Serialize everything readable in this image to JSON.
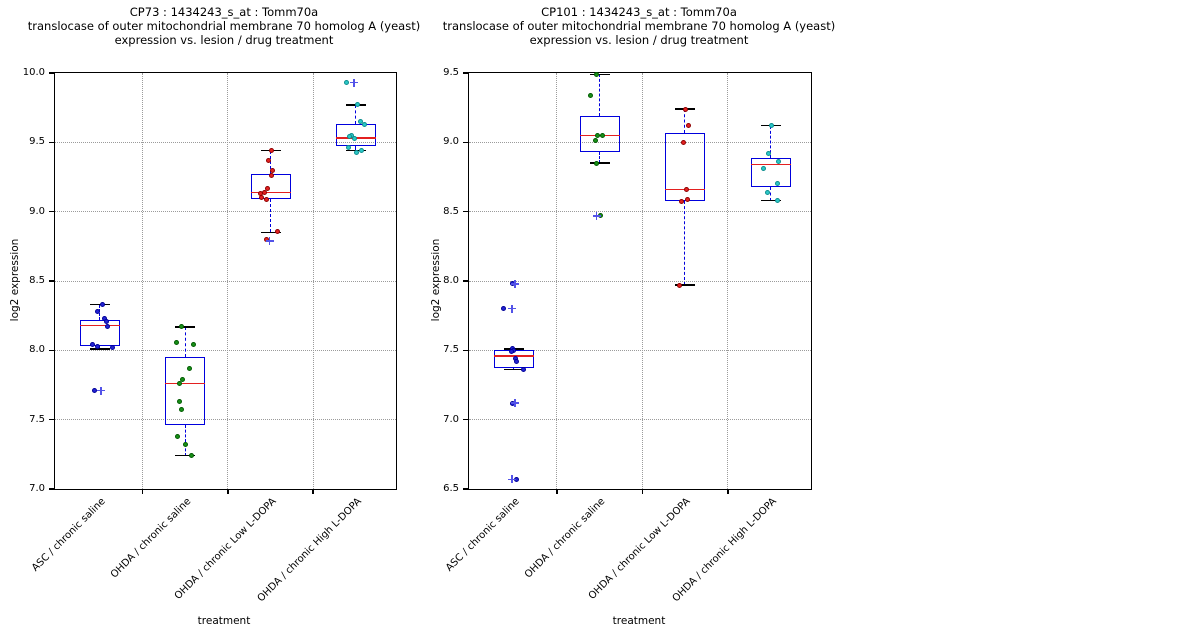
{
  "figure": {
    "background": "#ffffff",
    "colors": {
      "box": "#0000dd",
      "median": "#e32020",
      "whisker_cap": "#000000",
      "flier": "#5353e8",
      "grid": "#9b9b9b",
      "axis": "#000000"
    }
  },
  "chart_data": [
    {
      "type": "boxplot-with-points",
      "title_lines": [
        "CP73 : 1434243_s_at : Tomm70a",
        "translocase of outer mitochondrial membrane 70 homolog A (yeast)",
        "expression vs. lesion / drug treatment"
      ],
      "xlabel": "treatment",
      "ylabel": "log2 expression",
      "ylim": [
        7.0,
        10.0
      ],
      "yticks": [
        7.0,
        7.5,
        8.0,
        8.5,
        9.0,
        9.5,
        10.0
      ],
      "grid": "dotted horizontal at yticks, dotted vertical between categories",
      "categories": [
        "ASC / chronic saline",
        "OHDA / chronic saline",
        "OHDA / chronic Low L-DOPA",
        "OHDA / chronic High L-DOPA"
      ],
      "groups": [
        {
          "category": "ASC / chronic saline",
          "point_color": "#2323d3",
          "point_edge": "#000099",
          "box": {
            "whisker_low": 8.01,
            "q1": 8.03,
            "median": 8.18,
            "q3": 8.22,
            "whisker_high": 8.33
          },
          "points": [
            [
              8.33,
              2
            ],
            [
              8.28,
              -3
            ],
            [
              8.23,
              4
            ],
            [
              8.21,
              6
            ],
            [
              8.17,
              7
            ],
            [
              8.04,
              -8
            ],
            [
              8.03,
              -3
            ],
            [
              8.02,
              12
            ],
            [
              7.71,
              -6
            ]
          ],
          "fliers": [
            [
              7.71,
              1
            ]
          ]
        },
        {
          "category": "OHDA / chronic saline",
          "point_color": "#189018",
          "point_edge": "#005a00",
          "box": {
            "whisker_low": 7.24,
            "q1": 7.46,
            "median": 7.76,
            "q3": 7.95,
            "whisker_high": 8.17
          },
          "points": [
            [
              8.17,
              -4
            ],
            [
              8.06,
              -9
            ],
            [
              8.04,
              8
            ],
            [
              7.87,
              4
            ],
            [
              7.79,
              -3
            ],
            [
              7.76,
              -6
            ],
            [
              7.63,
              -6
            ],
            [
              7.57,
              -4
            ],
            [
              7.38,
              -8
            ],
            [
              7.32,
              0
            ],
            [
              7.24,
              6
            ]
          ],
          "fliers": []
        },
        {
          "category": "OHDA / chronic Low L-DOPA",
          "point_color": "#e32222",
          "point_edge": "#8f0000",
          "box": {
            "whisker_low": 8.85,
            "q1": 9.09,
            "median": 9.14,
            "q3": 9.27,
            "whisker_high": 9.44
          },
          "points": [
            [
              9.44,
              1
            ],
            [
              9.37,
              -2
            ],
            [
              9.3,
              2
            ],
            [
              9.26,
              1
            ],
            [
              9.17,
              -3
            ],
            [
              9.14,
              -6
            ],
            [
              9.13,
              -10
            ],
            [
              9.1,
              -9
            ],
            [
              9.09,
              -4
            ],
            [
              8.86,
              7
            ],
            [
              8.8,
              -4
            ]
          ],
          "fliers": [
            [
              8.79,
              -1
            ]
          ]
        },
        {
          "category": "OHDA / chronic High L-DOPA",
          "point_color": "#2cc7c7",
          "point_edge": "#0c8f8f",
          "box": {
            "whisker_low": 9.44,
            "q1": 9.47,
            "median": 9.53,
            "q3": 9.63,
            "whisker_high": 9.77
          },
          "points": [
            [
              9.93,
              -10
            ],
            [
              9.77,
              1
            ],
            [
              9.65,
              4
            ],
            [
              9.63,
              8
            ],
            [
              9.55,
              -5
            ],
            [
              9.54,
              -7
            ],
            [
              9.53,
              -2
            ],
            [
              9.46,
              -8
            ],
            [
              9.44,
              5
            ],
            [
              9.43,
              0
            ]
          ],
          "fliers": [
            [
              9.93,
              -2
            ]
          ]
        }
      ]
    },
    {
      "type": "boxplot-with-points",
      "title_lines": [
        "CP101 : 1434243_s_at : Tomm70a",
        "translocase of outer mitochondrial membrane 70 homolog A (yeast)",
        "expression vs. lesion / drug treatment"
      ],
      "xlabel": "treatment",
      "ylabel": "log2 expression",
      "ylim": [
        6.5,
        9.5
      ],
      "yticks": [
        6.5,
        7.0,
        7.5,
        8.0,
        8.5,
        9.0,
        9.5
      ],
      "grid": "dotted horizontal at yticks, dotted vertical between categories",
      "categories": [
        "ASC / chronic saline",
        "OHDA / chronic saline",
        "OHDA / chronic Low L-DOPA",
        "OHDA / chronic High L-DOPA"
      ],
      "groups": [
        {
          "category": "ASC / chronic saline",
          "point_color": "#2323d3",
          "point_edge": "#000099",
          "box": {
            "whisker_low": 7.36,
            "q1": 7.37,
            "median": 7.46,
            "q3": 7.5,
            "whisker_high": 7.51
          },
          "points": [
            [
              7.98,
              -2
            ],
            [
              7.8,
              -11
            ],
            [
              7.51,
              -2
            ],
            [
              7.5,
              -1
            ],
            [
              7.49,
              -3
            ],
            [
              7.44,
              1
            ],
            [
              7.42,
              2
            ],
            [
              7.36,
              9
            ],
            [
              7.12,
              -2
            ],
            [
              6.57,
              2
            ]
          ],
          "fliers": [
            [
              7.98,
              1
            ],
            [
              7.8,
              -2
            ],
            [
              7.12,
              1
            ],
            [
              6.57,
              -2
            ]
          ]
        },
        {
          "category": "OHDA / chronic saline",
          "point_color": "#189018",
          "point_edge": "#005a00",
          "box": {
            "whisker_low": 8.85,
            "q1": 8.93,
            "median": 9.05,
            "q3": 9.19,
            "whisker_high": 9.49
          },
          "points": [
            [
              9.49,
              -3
            ],
            [
              9.34,
              -9
            ],
            [
              9.05,
              -2
            ],
            [
              9.05,
              3
            ],
            [
              9.01,
              -4
            ],
            [
              8.85,
              -3
            ],
            [
              8.47,
              1
            ]
          ],
          "fliers": [
            [
              8.47,
              -3
            ]
          ]
        },
        {
          "category": "OHDA / chronic Low L-DOPA",
          "point_color": "#e32222",
          "point_edge": "#8f0000",
          "box": {
            "whisker_low": 7.97,
            "q1": 8.58,
            "median": 8.66,
            "q3": 9.07,
            "whisker_high": 9.24
          },
          "points": [
            [
              9.24,
              0
            ],
            [
              9.12,
              3
            ],
            [
              9.0,
              -2
            ],
            [
              8.66,
              1
            ],
            [
              8.59,
              2
            ],
            [
              8.57,
              -4
            ],
            [
              7.97,
              -6
            ]
          ],
          "fliers": []
        },
        {
          "category": "OHDA / chronic High L-DOPA",
          "point_color": "#2cc7c7",
          "point_edge": "#0c8f8f",
          "box": {
            "whisker_low": 8.58,
            "q1": 8.68,
            "median": 8.84,
            "q3": 8.89,
            "whisker_high": 9.12
          },
          "points": [
            [
              9.12,
              1
            ],
            [
              8.92,
              -2
            ],
            [
              8.86,
              8
            ],
            [
              8.81,
              -7
            ],
            [
              8.7,
              7
            ],
            [
              8.64,
              -3
            ],
            [
              8.58,
              7
            ]
          ],
          "fliers": []
        }
      ]
    }
  ]
}
